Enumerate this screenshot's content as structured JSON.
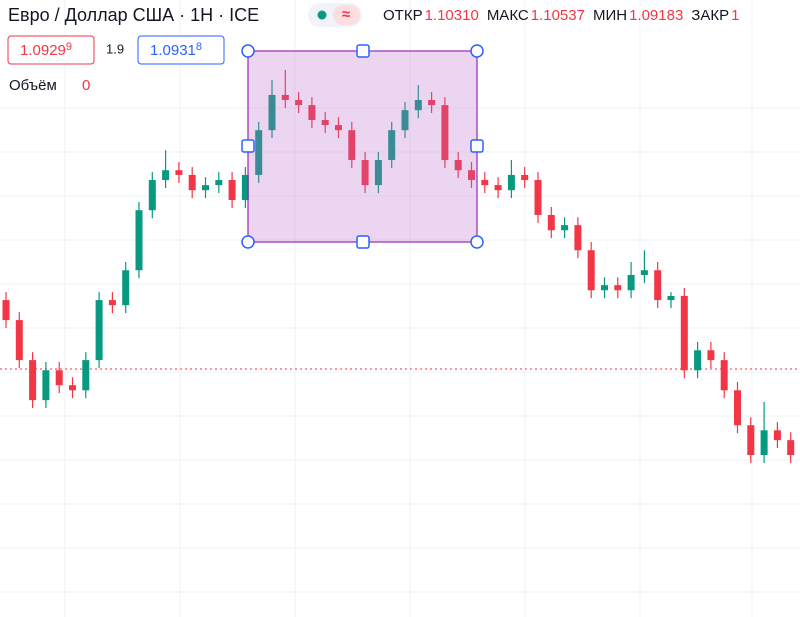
{
  "header": {
    "title": "Евро / Доллар США · 1H · ICE",
    "badge": "≈",
    "ohlc": [
      {
        "label": "ОТКР",
        "value": "1.10310"
      },
      {
        "label": "МАКС",
        "value": "1.10537"
      },
      {
        "label": "МИН",
        "value": "1.09183"
      },
      {
        "label": "ЗАКР",
        "value": "1"
      }
    ]
  },
  "prices": {
    "sell": {
      "main": "1.0929",
      "small": "9"
    },
    "spread": "1.9",
    "buy": {
      "main": "1.0931",
      "small": "8"
    }
  },
  "volume": {
    "label": "Объём",
    "value": "0"
  },
  "candles": [
    [
      1.09781,
      1.09806,
      1.09693,
      1.09718
    ],
    [
      1.09718,
      1.09743,
      1.09567,
      1.09592
    ],
    [
      1.09592,
      1.09617,
      1.09441,
      1.09466
    ],
    [
      1.09466,
      1.09586,
      1.09441,
      1.0956
    ],
    [
      1.0956,
      1.09586,
      1.09488,
      1.09513
    ],
    [
      1.09513,
      1.09538,
      1.09472,
      1.09497
    ],
    [
      1.09497,
      1.09617,
      1.09472,
      1.09592
    ],
    [
      1.09592,
      1.09806,
      1.09567,
      1.09781
    ],
    [
      1.09781,
      1.09806,
      1.0974,
      1.09765
    ],
    [
      1.09765,
      1.09901,
      1.0974,
      1.09875
    ],
    [
      1.09875,
      1.1009,
      1.0985,
      1.10064
    ],
    [
      1.10064,
      1.10184,
      1.10039,
      1.10159
    ],
    [
      1.10159,
      1.10253,
      1.10134,
      1.1019
    ],
    [
      1.1019,
      1.10216,
      1.1015,
      1.10175
    ],
    [
      1.10175,
      1.102,
      1.10102,
      1.10127
    ],
    [
      1.10127,
      1.10168,
      1.10102,
      1.10143
    ],
    [
      1.10143,
      1.10184,
      1.10118,
      1.10159
    ],
    [
      1.10159,
      1.10184,
      1.10071,
      1.10096
    ],
    [
      1.10096,
      1.102,
      1.10071,
      1.10175
    ],
    [
      1.10175,
      1.10342,
      1.1015,
      1.10316
    ],
    [
      1.10316,
      1.10474,
      1.10291,
      1.10427
    ],
    [
      1.10427,
      1.10506,
      1.10386,
      1.10411
    ],
    [
      1.10411,
      1.10436,
      1.1037,
      1.10395
    ],
    [
      1.10395,
      1.1042,
      1.10323,
      1.10348
    ],
    [
      1.10348,
      1.10373,
      1.10307,
      1.10332
    ],
    [
      1.10332,
      1.10357,
      1.10291,
      1.10316
    ],
    [
      1.10316,
      1.10342,
      1.10197,
      1.10222
    ],
    [
      1.10222,
      1.10247,
      1.10118,
      1.10143
    ],
    [
      1.10143,
      1.10247,
      1.10118,
      1.10222
    ],
    [
      1.10222,
      1.10342,
      1.10197,
      1.10316
    ],
    [
      1.10316,
      1.10405,
      1.10291,
      1.10379
    ],
    [
      1.10379,
      1.10458,
      1.10354,
      1.10411
    ],
    [
      1.10411,
      1.10436,
      1.1037,
      1.10395
    ],
    [
      1.10395,
      1.1042,
      1.10197,
      1.10222
    ],
    [
      1.10222,
      1.10247,
      1.10165,
      1.1019
    ],
    [
      1.1019,
      1.10216,
      1.10134,
      1.10159
    ],
    [
      1.10159,
      1.10184,
      1.10118,
      1.10143
    ],
    [
      1.10143,
      1.10168,
      1.10102,
      1.10127
    ],
    [
      1.10127,
      1.10222,
      1.10102,
      1.10175
    ],
    [
      1.10175,
      1.102,
      1.10134,
      1.10159
    ],
    [
      1.10159,
      1.10184,
      1.10024,
      1.10049
    ],
    [
      1.10049,
      1.10074,
      1.09976,
      1.10001
    ],
    [
      1.10001,
      1.10042,
      1.09976,
      1.10017
    ],
    [
      1.10017,
      1.10042,
      1.09913,
      1.09938
    ],
    [
      1.09938,
      1.09964,
      1.09787,
      1.09812
    ],
    [
      1.09812,
      1.09853,
      1.09787,
      1.09828
    ],
    [
      1.09828,
      1.09853,
      1.09787,
      1.09812
    ],
    [
      1.09812,
      1.09901,
      1.09787,
      1.0986
    ],
    [
      1.0986,
      1.09938,
      1.09835,
      1.09875
    ],
    [
      1.09875,
      1.09901,
      1.09756,
      1.09781
    ],
    [
      1.09781,
      1.09806,
      1.09756,
      1.09794
    ],
    [
      1.09794,
      1.09819,
      1.09535,
      1.0956
    ],
    [
      1.0956,
      1.09649,
      1.09535,
      1.09623
    ],
    [
      1.09623,
      1.09649,
      1.09567,
      1.09592
    ],
    [
      1.09592,
      1.09617,
      1.09472,
      1.09497
    ],
    [
      1.09497,
      1.09523,
      1.09362,
      1.09387
    ],
    [
      1.09387,
      1.09412,
      1.09268,
      1.09293
    ],
    [
      1.09293,
      1.0946,
      1.09268,
      1.09371
    ],
    [
      1.09371,
      1.09397,
      1.09315,
      1.0934
    ],
    [
      1.0934,
      1.09365,
      1.09268,
      1.09293
    ]
  ]
}
